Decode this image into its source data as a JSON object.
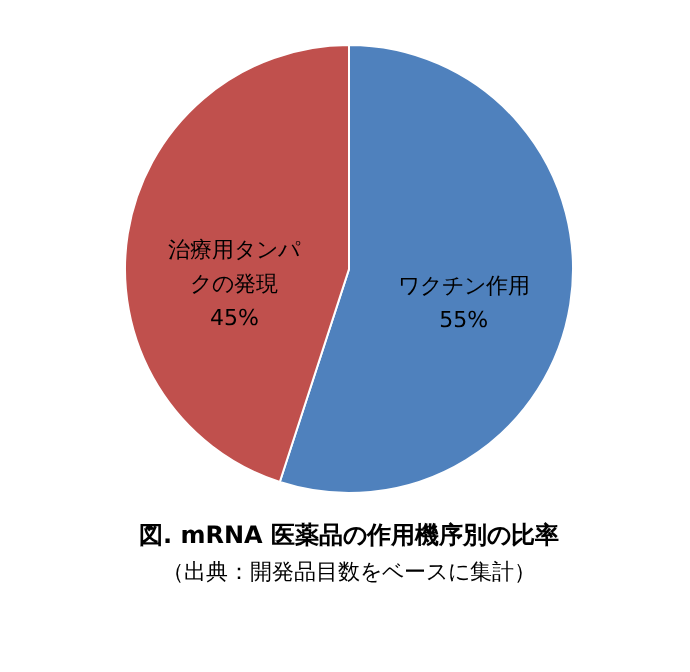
{
  "chart_data": {
    "type": "pie",
    "title": "図. mRNA 医薬品の作用機序別の比率",
    "annotations": [
      "（出典：開発品目数をベースに集計）"
    ],
    "categories": [
      "ワクチン作用",
      "治療用タンパクの発現"
    ],
    "values": [
      55,
      45
    ],
    "colors": [
      "#4f81bd",
      "#c0504d"
    ],
    "value_labels": [
      "55%",
      "45%"
    ],
    "legend": false
  }
}
